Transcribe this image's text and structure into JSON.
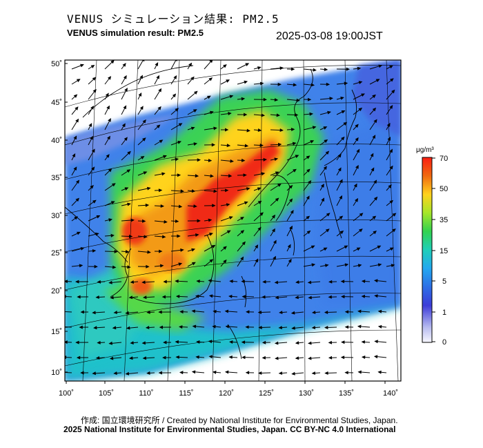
{
  "header": {
    "title_jp": "VENUS シミュレーション結果: PM2.5",
    "title_en": "VENUS simulation result: PM2.5",
    "timestamp": "2025-03-08 19:00JST"
  },
  "map": {
    "lat_labels": [
      "50˚",
      "45˚",
      "40˚",
      "35˚",
      "30˚",
      "25˚",
      "20˚",
      "15˚",
      "10˚"
    ],
    "lon_labels": [
      "100˚",
      "105˚",
      "110˚",
      "115˚",
      "120˚",
      "125˚",
      "130˚",
      "135˚",
      "140˚"
    ],
    "variable": "PM2.5"
  },
  "colorbar": {
    "unit": "μg/m³",
    "ticks": [
      "70",
      "50",
      "35",
      "15",
      "5",
      "1",
      "0"
    ],
    "colors": [
      "#fa1e12",
      "#f06a10",
      "#ffd21e",
      "#a6e62a",
      "#32d250",
      "#1fcfb9",
      "#23a8f0",
      "#2d6fe6",
      "#3c3cd8",
      "#b9bdf0",
      "#f7f7ff"
    ]
  },
  "footer": {
    "credit": "作成: 国立環境研究所 / Created by National Institute for Environmental Studies, Japan.",
    "license": "2025 National Institute for Environmental Studies, Japan. CC BY-NC 4.0 International"
  }
}
